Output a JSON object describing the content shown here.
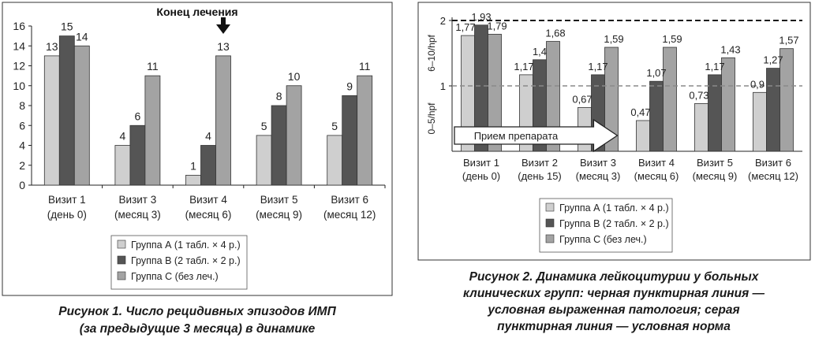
{
  "colors": {
    "group_a": "#cfcfcf",
    "group_b": "#555555",
    "group_c": "#a3a3a3",
    "pathology_line": "#1a1a1a",
    "norm_line": "#8a8a8a"
  },
  "chart_data": [
    {
      "type": "bar",
      "title": "",
      "xlabel": "",
      "ylabel": "",
      "ylim": [
        0,
        16
      ],
      "yticks": [
        "0",
        "2",
        "4",
        "6",
        "8",
        "10",
        "12",
        "14",
        "16"
      ],
      "grid": false,
      "legend_position": "bottom",
      "categories": [
        [
          "Визит 1",
          "(день 0)"
        ],
        [
          "Визит 3",
          "(месяц 3)"
        ],
        [
          "Визит 4",
          "(месяц 6)"
        ],
        [
          "Визит 5",
          "(месяц 9)"
        ],
        [
          "Визит 6",
          "(месяц 12)"
        ]
      ],
      "series": [
        {
          "name": "Группа А (1 табл. × 4 р.)",
          "values": [
            13,
            4,
            1,
            5,
            5
          ],
          "labels": [
            "13",
            "4",
            "1",
            "5",
            "5"
          ]
        },
        {
          "name": "Группа В (2 табл. × 2 р.)",
          "values": [
            15,
            6,
            4,
            8,
            9
          ],
          "labels": [
            "15",
            "6",
            "4",
            "8",
            "9"
          ]
        },
        {
          "name": "Группа С (без леч.)",
          "values": [
            14,
            11,
            13,
            10,
            11
          ],
          "labels": [
            "14",
            "11",
            "13",
            "10",
            "11"
          ]
        }
      ],
      "annotation": {
        "text": "Конец лечения",
        "category_index": 2
      },
      "caption": [
        "Рисунок 1. Число рецидивных эпизодов ИМП",
        "(за предыдущие 3 месяца) в динамике"
      ]
    },
    {
      "type": "bar",
      "title": "",
      "xlabel": "",
      "ylabel_upper": "6–10/hpf",
      "ylabel_lower": "0–5/hpf",
      "ylim": [
        0,
        2
      ],
      "yticks": [
        "1",
        "2"
      ],
      "grid": false,
      "legend_position": "bottom",
      "categories": [
        [
          "Визит 1",
          "(день 0)"
        ],
        [
          "Визит 2",
          "(день 15)"
        ],
        [
          "Визит 3",
          "(месяц 3)"
        ],
        [
          "Визит 4",
          "(месяц 6)"
        ],
        [
          "Визит 5",
          "(месяц 9)"
        ],
        [
          "Визит 6",
          "(месяц 12)"
        ]
      ],
      "series": [
        {
          "name": "Группа А (1 табл. × 4 р.)",
          "values": [
            1.77,
            1.17,
            0.67,
            0.47,
            0.73,
            0.9
          ],
          "labels": [
            "1,77",
            "1,17",
            "0,67",
            "0,47",
            "0,73",
            "0,9"
          ]
        },
        {
          "name": "Группа В (2 табл. × 2 р.)",
          "values": [
            1.93,
            1.4,
            1.17,
            1.07,
            1.17,
            1.27
          ],
          "labels": [
            "1,93",
            "1,4",
            "1,17",
            "1,07",
            "1,17",
            "1,27"
          ]
        },
        {
          "name": "Группа С (без леч.)",
          "values": [
            1.79,
            1.68,
            1.59,
            1.59,
            1.43,
            1.57
          ],
          "labels": [
            "1,79",
            "1,68",
            "1,59",
            "1,59",
            "1,43",
            "1,57"
          ]
        }
      ],
      "reference_lines": [
        {
          "value": 2,
          "style": "black dashed"
        },
        {
          "value": 1,
          "style": "gray dashed"
        }
      ],
      "annotation": {
        "text": "Прием препарата",
        "span_categories": [
          0,
          2
        ]
      },
      "caption": [
        "Рисунок 2. Динамика лейкоцитурии у больных",
        "клинических групп: черная пунктирная линия —",
        "условная выраженная патология; серая",
        "пунктирная линия — условная норма"
      ]
    }
  ]
}
